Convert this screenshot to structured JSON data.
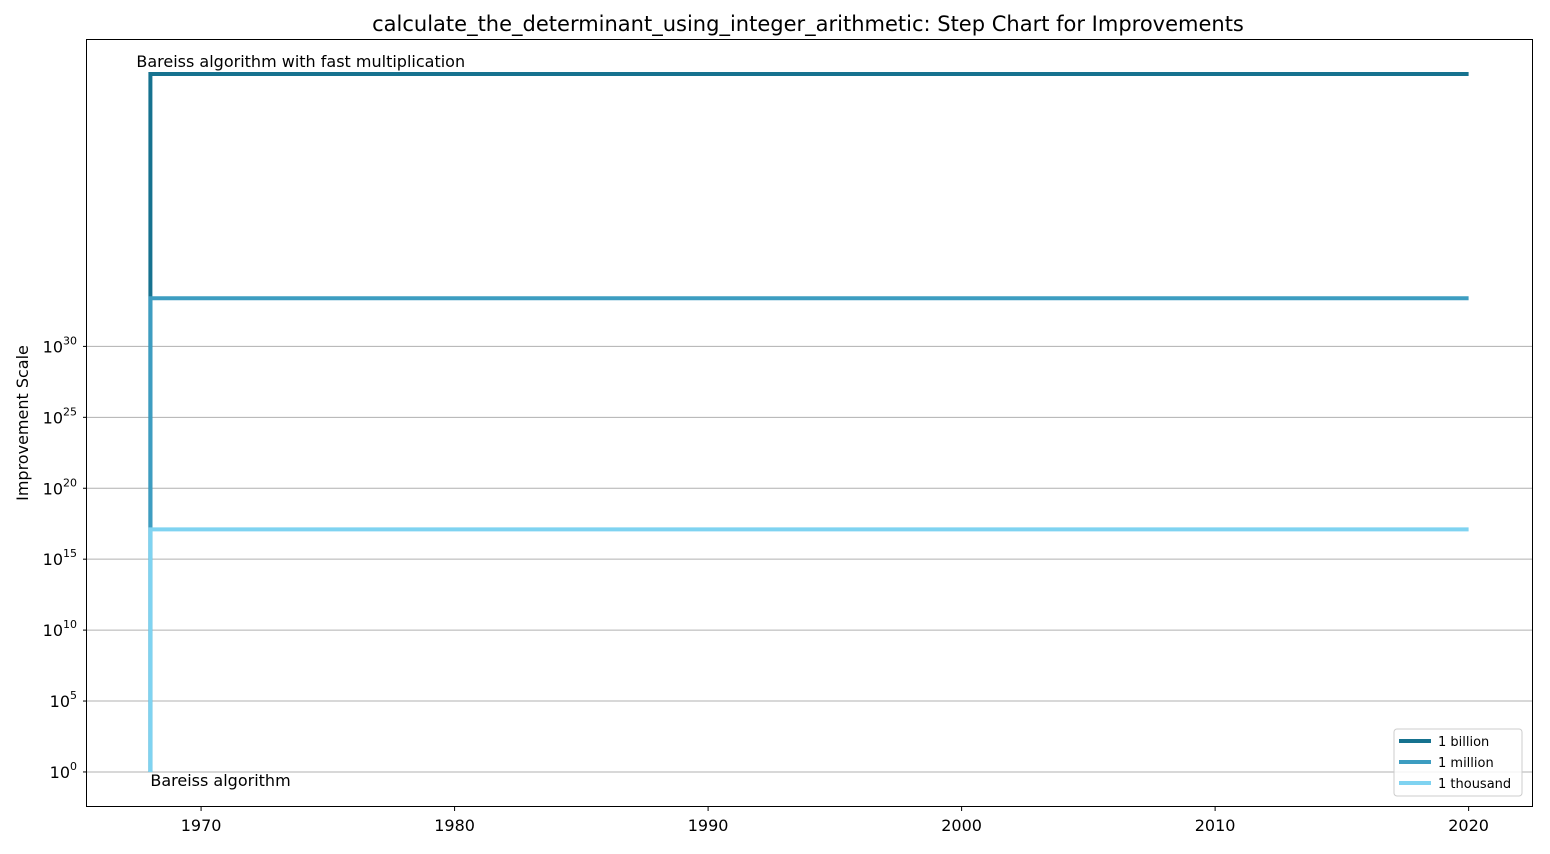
{
  "chart_data": {
    "type": "line",
    "step": true,
    "title": "calculate_the_determinant_using_integer_arithmetic: Step Chart for Improvements",
    "xlabel": "",
    "ylabel": "Improvement Scale",
    "y_scale": "log",
    "xlim": [
      1965.5,
      2022.5
    ],
    "ylim_log10": [
      -2.4,
      51.6
    ],
    "x_ticks": [
      1970,
      1980,
      1990,
      2000,
      2010,
      2020
    ],
    "y_ticks_log10": [
      0,
      5,
      10,
      15,
      20,
      25,
      30
    ],
    "grid": "horizontal",
    "legend_position": "lower-right",
    "series": [
      {
        "name": "1 billion",
        "color": "#16728f",
        "x": [
          1968,
          1968,
          2020
        ],
        "y_log10": [
          0,
          49.2,
          49.2
        ]
      },
      {
        "name": "1 million",
        "color": "#3d9dc1",
        "x": [
          1968,
          1968,
          2020
        ],
        "y_log10": [
          0,
          33.4,
          33.4
        ]
      },
      {
        "name": "1 thousand",
        "color": "#7fd3f1",
        "x": [
          1968,
          1968,
          2020
        ],
        "y_log10": [
          0,
          17.1,
          17.1
        ]
      }
    ],
    "annotations": [
      {
        "text": "Bareiss algorithm with fast multiplication",
        "x": 1968,
        "y_log10": 49.2,
        "anchor": "above"
      },
      {
        "text": "Bareiss algorithm",
        "x": 1968,
        "y_log10": 0,
        "anchor": "below"
      }
    ]
  }
}
